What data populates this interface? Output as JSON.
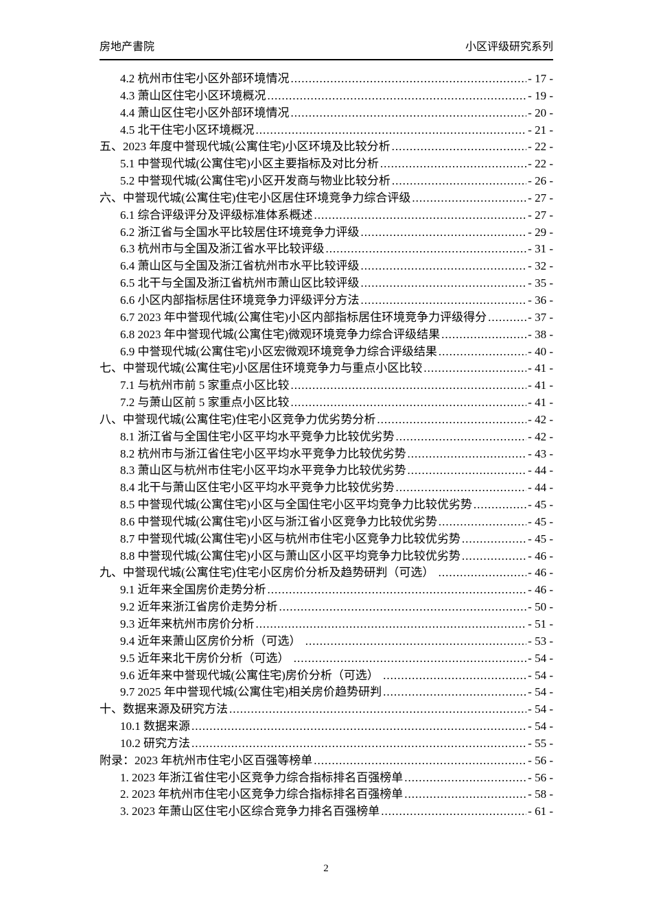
{
  "colors": {
    "background": "#ffffff",
    "text": "#000000",
    "header_rule": "#000000"
  },
  "header": {
    "left": "房地产書院",
    "right": "小区评级研究系列"
  },
  "toc": {
    "entries": [
      {
        "level": 2,
        "text": "4.2 杭州市住宅小区外部环境情况",
        "page": "- 17 -"
      },
      {
        "level": 2,
        "text": "4.3 萧山区住宅小区环境概况",
        "page": "- 19 -"
      },
      {
        "level": 2,
        "text": "4.4 萧山区住宅小区外部环境情况",
        "page": "- 20 -"
      },
      {
        "level": 2,
        "text": "4.5 北干住宅小区环境概况",
        "page": "- 21 -"
      },
      {
        "level": 1,
        "text": "五、2023 年度中誉现代城(公寓住宅)小区环境及比较分析",
        "page": "- 22 -"
      },
      {
        "level": 2,
        "text": "5.1 中誉现代城(公寓住宅)小区主要指标及对比分析",
        "page": "- 22 -"
      },
      {
        "level": 2,
        "text": "5.2 中誉现代城(公寓住宅)小区开发商与物业比较分析",
        "page": "- 26 -"
      },
      {
        "level": 1,
        "text": "六、中誉现代城(公寓住宅)住宅小区居住环境竞争力综合评级",
        "page": "- 27 -"
      },
      {
        "level": 2,
        "text": "6.1 综合评级评分及评级标准体系概述",
        "page": "- 27 -"
      },
      {
        "level": 2,
        "text": "6.2 浙江省与全国水平比较居住环境竞争力评级",
        "page": "- 29 -"
      },
      {
        "level": 2,
        "text": "6.3 杭州市与全国及浙江省水平比较评级",
        "page": "- 31 -"
      },
      {
        "level": 2,
        "text": "6.4 萧山区与全国及浙江省杭州市水平比较评级",
        "page": "- 32 -"
      },
      {
        "level": 2,
        "text": "6.5 北干与全国及浙江省杭州市萧山区比较评级",
        "page": "- 35 -"
      },
      {
        "level": 2,
        "text": "6.6 小区内部指标居住环境竞争力评级评分方法",
        "page": "- 36 -"
      },
      {
        "level": 2,
        "text": "6.7 2023 年中誉现代城(公寓住宅)小区内部指标居住环境竞争力评级得分",
        "page": "- 37 -"
      },
      {
        "level": 2,
        "text": "6.8 2023 年中誉现代城(公寓住宅)微观环境竞争力综合评级结果",
        "page": "- 38 -"
      },
      {
        "level": 2,
        "text": "6.9 中誉现代城(公寓住宅)小区宏微观环境竞争力综合评级结果",
        "page": "- 40 -"
      },
      {
        "level": 1,
        "text": "七、中誉现代城(公寓住宅)小区居住环境竞争力与重点小区比较",
        "page": "- 41 -"
      },
      {
        "level": 2,
        "text": "7.1 与杭州市前 5 家重点小区比较",
        "page": "- 41 -"
      },
      {
        "level": 2,
        "text": "7.2 与萧山区前 5 家重点小区比较",
        "page": "- 41 -"
      },
      {
        "level": 1,
        "text": "八、中誉现代城(公寓住宅)住宅小区竞争力优劣势分析",
        "page": "- 42 -"
      },
      {
        "level": 2,
        "text": "8.1 浙江省与全国住宅小区平均水平竞争力比较优劣势",
        "page": "- 42 -"
      },
      {
        "level": 2,
        "text": "8.2 杭州市与浙江省住宅小区平均水平竞争力比较优劣势",
        "page": "- 43 -"
      },
      {
        "level": 2,
        "text": "8.3 萧山区与杭州市住宅小区平均水平竞争力比较优劣势",
        "page": "- 44 -"
      },
      {
        "level": 2,
        "text": "8.4 北干与萧山区住宅小区平均水平竞争力比较优劣势",
        "page": "- 44 -"
      },
      {
        "level": 2,
        "text": "8.5 中誉现代城(公寓住宅)小区与全国住宅小区平均竞争力比较优劣势",
        "page": "- 45 -"
      },
      {
        "level": 2,
        "text": "8.6 中誉现代城(公寓住宅)小区与浙江省小区竞争力比较优劣势",
        "page": "- 45 -"
      },
      {
        "level": 2,
        "text": "8.7 中誉现代城(公寓住宅)小区与杭州市住宅小区竞争力比较优劣势",
        "page": "- 45 -"
      },
      {
        "level": 2,
        "text": "8.8 中誉现代城(公寓住宅)小区与萧山区小区平均竞争力比较优劣势",
        "page": "- 46 -"
      },
      {
        "level": 1,
        "text": "九、中誉现代城(公寓住宅)住宅小区房价分析及趋势研判（可选） ",
        "page": "- 46 -"
      },
      {
        "level": 2,
        "text": "9.1 近年来全国房价走势分析",
        "page": "- 46 -"
      },
      {
        "level": 2,
        "text": "9.2 近年来浙江省房价走势分析",
        "page": "- 50 -"
      },
      {
        "level": 2,
        "text": "9.3 近年来杭州市房价分析",
        "page": "- 51 -"
      },
      {
        "level": 2,
        "text": "9.4 近年来萧山区房价分析（可选） ",
        "page": "- 53 -"
      },
      {
        "level": 2,
        "text": "9.5 近年来北干房价分析（可选） ",
        "page": "- 54 -"
      },
      {
        "level": 2,
        "text": "9.6 近年来中誉现代城(公寓住宅)房价分析（可选） ",
        "page": "- 54 -"
      },
      {
        "level": 2,
        "text": "9.7 2025 年中誉现代城(公寓住宅)相关房价趋势研判",
        "page": "- 54 -"
      },
      {
        "level": 1,
        "text": "十、数据来源及研究方法",
        "page": "- 54 -"
      },
      {
        "level": 2,
        "text": "10.1 数据来源",
        "page": "- 54 -"
      },
      {
        "level": 2,
        "text": "10.2 研究方法",
        "page": "- 55 -"
      },
      {
        "level": 1,
        "text": "附录：2023 年杭州市住宅小区百强等榜单",
        "page": "- 56 -"
      },
      {
        "level": 2,
        "text": "1. 2023 年浙江省住宅小区竞争力综合指标排名百强榜单",
        "page": "- 56 -"
      },
      {
        "level": 2,
        "text": "2. 2023 年杭州市住宅小区竞争力综合指标排名百强榜单",
        "page": "- 58 -"
      },
      {
        "level": 2,
        "text": "3. 2023 年萧山区住宅小区综合竞争力排名百强榜单",
        "page": "- 61 -"
      }
    ]
  },
  "footer": {
    "page_number": "2"
  }
}
